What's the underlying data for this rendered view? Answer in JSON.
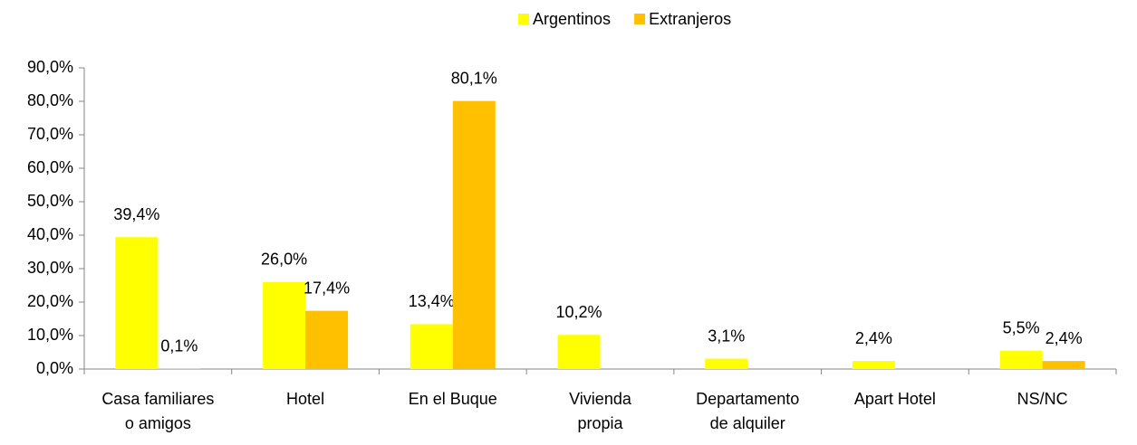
{
  "chart_data": {
    "type": "bar",
    "categories": [
      "Casa familiares\no amigos",
      "Hotel",
      "En el Buque",
      "Vivienda\npropia",
      "Departamento\nde alquiler",
      "Apart Hotel",
      "NS/NC"
    ],
    "series": [
      {
        "name": "Argentinos",
        "color": "#ffff00",
        "values": [
          39.4,
          26.0,
          13.4,
          10.2,
          3.1,
          2.4,
          5.5
        ],
        "value_labels": [
          "39,4%",
          "26,0%",
          "13,4%",
          "10,2%",
          "3,1%",
          "2,4%",
          "5,5%"
        ]
      },
      {
        "name": "Extranjeros",
        "color": "#ffc000",
        "values": [
          0.1,
          17.4,
          80.1,
          null,
          null,
          null,
          2.4
        ],
        "value_labels": [
          "0,1%",
          "17,4%",
          "80,1%",
          null,
          null,
          null,
          "2,4%"
        ]
      }
    ],
    "ylim": [
      0,
      90
    ],
    "yticks": [
      {
        "value": 0,
        "label": "0,0%"
      },
      {
        "value": 10,
        "label": "10,0%"
      },
      {
        "value": 20,
        "label": "20,0%"
      },
      {
        "value": 30,
        "label": "30,0%"
      },
      {
        "value": 40,
        "label": "40,0%"
      },
      {
        "value": 50,
        "label": "50,0%"
      },
      {
        "value": 60,
        "label": "60,0%"
      },
      {
        "value": 70,
        "label": "70,0%"
      },
      {
        "value": 80,
        "label": "80,0%"
      },
      {
        "value": 90,
        "label": "90,0%"
      }
    ],
    "legend": "top"
  }
}
